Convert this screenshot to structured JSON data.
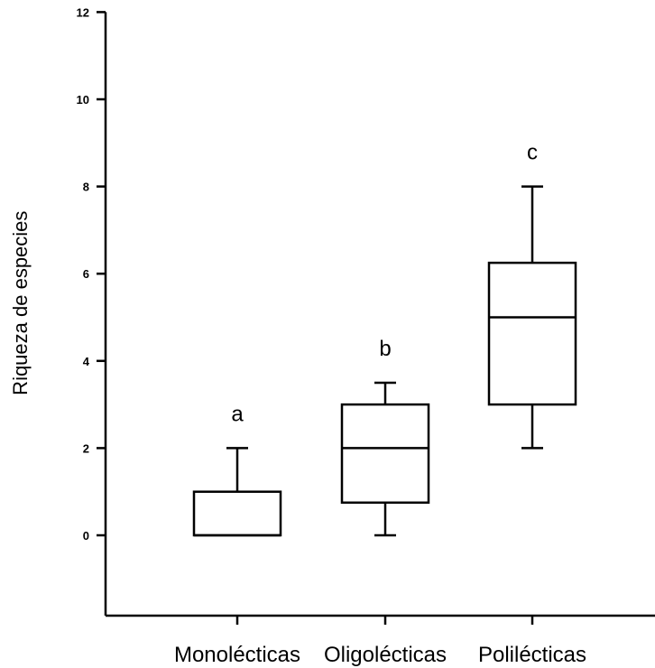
{
  "chart_data": {
    "type": "boxplot",
    "ylabel": "Riqueza de especies",
    "xlabel": "",
    "ylim": [
      -2,
      12
    ],
    "yticks": [
      0,
      2,
      4,
      6,
      8,
      10,
      12
    ],
    "grid": false,
    "categories": [
      "Monolécticas",
      "Oligolécticas",
      "Polilécticas"
    ],
    "boxes": [
      {
        "category": "Monolécticas",
        "min": 0,
        "q1": 0,
        "median": 0,
        "q3": 1,
        "max": 2,
        "letter": "a"
      },
      {
        "category": "Oligolécticas",
        "min": 0,
        "q1": 0.75,
        "median": 2,
        "q3": 3,
        "max": 3.5,
        "letter": "b"
      },
      {
        "category": "Polilécticas",
        "min": 2,
        "q1": 3,
        "median": 5,
        "q3": 6.25,
        "max": 8,
        "letter": "c"
      }
    ]
  }
}
